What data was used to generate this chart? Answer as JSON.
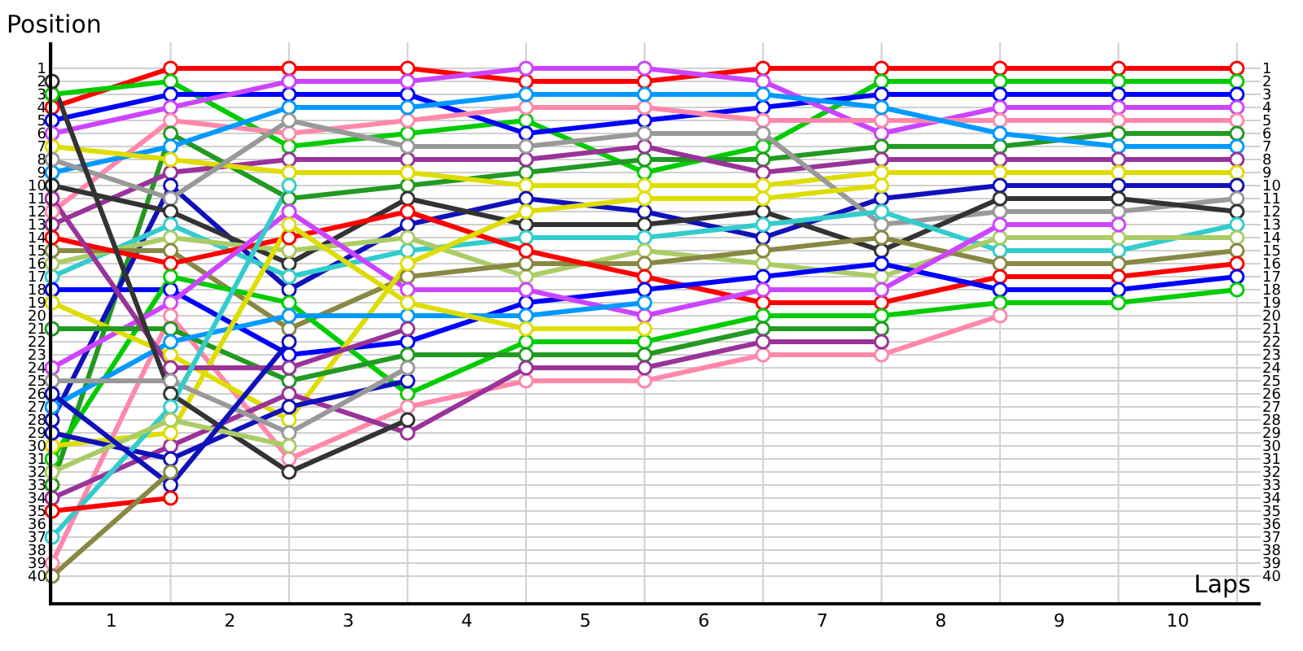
{
  "chart_data": {
    "type": "line",
    "xlabel": "Laps",
    "ylabel": "Position",
    "grid": true,
    "marker": "circle",
    "line_style": "solid",
    "x": [
      0,
      1,
      2,
      3,
      4,
      5,
      6,
      7,
      8,
      9,
      10
    ],
    "xlim": [
      0,
      10.2
    ],
    "xticks": [
      {
        "value": 0,
        "label": null
      },
      {
        "value": 0.5,
        "label": "1"
      },
      {
        "value": 1,
        "label": null
      },
      {
        "value": 1.5,
        "label": "2"
      },
      {
        "value": 2,
        "label": null
      },
      {
        "value": 2.5,
        "label": "3"
      },
      {
        "value": 3,
        "label": null
      },
      {
        "value": 3.5,
        "label": "4"
      },
      {
        "value": 4,
        "label": null
      },
      {
        "value": 4.5,
        "label": "5"
      },
      {
        "value": 5,
        "label": null
      },
      {
        "value": 5.5,
        "label": "6"
      },
      {
        "value": 6,
        "label": null
      },
      {
        "value": 6.5,
        "label": "7"
      },
      {
        "value": 7,
        "label": null
      },
      {
        "value": 7.5,
        "label": "8"
      },
      {
        "value": 8,
        "label": null
      },
      {
        "value": 8.5,
        "label": "9"
      },
      {
        "value": 9,
        "label": null
      },
      {
        "value": 9.5,
        "label": "10"
      },
      {
        "value": 10,
        "label": null
      }
    ],
    "ylim": [
      42,
      -1
    ],
    "yticks": [
      1,
      2,
      3,
      4,
      5,
      6,
      7,
      8,
      9,
      10,
      11,
      12,
      13,
      14,
      15,
      16,
      17,
      18,
      19,
      20,
      21,
      22,
      23,
      24,
      25,
      26,
      27,
      28,
      29,
      30,
      31,
      32,
      33,
      34,
      35,
      36,
      37,
      38,
      39,
      40
    ],
    "y2lim": [
      42,
      -1
    ],
    "y2ticks": [
      1,
      2,
      3,
      4,
      5,
      6,
      7,
      8,
      9,
      10,
      11,
      12,
      13,
      14,
      15,
      16,
      17,
      18,
      19,
      20,
      21,
      22,
      23,
      24,
      25,
      26,
      27,
      28,
      29,
      30,
      31,
      32,
      33,
      34,
      35,
      36,
      37,
      38,
      39,
      40
    ],
    "series": [
      {
        "color": "#ff0000",
        "values": [
          4,
          1,
          1,
          1,
          2,
          2,
          1,
          1,
          1,
          1,
          1
        ]
      },
      {
        "color": "#00cc00",
        "values": [
          3,
          2,
          7,
          6,
          5,
          9,
          7,
          2,
          2,
          2,
          2
        ]
      },
      {
        "color": "#0000ff",
        "values": [
          5,
          3,
          3,
          3,
          6,
          5,
          4,
          3,
          3,
          3,
          3
        ]
      },
      {
        "color": "#cc44ff",
        "values": [
          6,
          4,
          2,
          2,
          1,
          1,
          2,
          6,
          4,
          4,
          4
        ]
      },
      {
        "color": "#ff88aa",
        "values": [
          12,
          5,
          6,
          5,
          4,
          4,
          5,
          5,
          5,
          5,
          5
        ]
      },
      {
        "color": "#229922",
        "values": [
          33,
          6,
          11,
          10,
          9,
          8,
          8,
          7,
          7,
          6,
          6
        ]
      },
      {
        "color": "#0099ff",
        "values": [
          9,
          7,
          4,
          4,
          3,
          3,
          3,
          4,
          6,
          7,
          7
        ]
      },
      {
        "color": "#993399",
        "values": [
          13,
          9,
          8,
          8,
          8,
          7,
          9,
          8,
          8,
          8,
          8
        ]
      },
      {
        "color": "#dddd00",
        "values": [
          7,
          8,
          9,
          9,
          10,
          10,
          10,
          9,
          9,
          9,
          9
        ]
      },
      {
        "color": "#1111bb",
        "values": [
          28,
          10,
          18,
          13,
          11,
          12,
          14,
          11,
          10,
          10,
          10
        ]
      },
      {
        "color": "#999999",
        "values": [
          8,
          11,
          5,
          7,
          7,
          6,
          6,
          13,
          12,
          12,
          11
        ]
      },
      {
        "color": "#333333",
        "values": [
          10,
          12,
          16,
          11,
          13,
          13,
          12,
          15,
          11,
          11,
          12
        ]
      },
      {
        "color": "#33cccc",
        "values": [
          17,
          13,
          17,
          15,
          14,
          14,
          13,
          12,
          15,
          15,
          13
        ]
      },
      {
        "color": "#aacc66",
        "values": [
          16,
          14,
          15,
          14,
          17,
          15,
          16,
          17,
          14,
          14,
          14
        ]
      },
      {
        "color": "#888844",
        "values": [
          15,
          15,
          21,
          17,
          16,
          16,
          15,
          14,
          16,
          16,
          15
        ]
      },
      {
        "color": "#ff0000",
        "values": [
          14,
          16,
          14,
          12,
          15,
          17,
          19,
          19,
          17,
          17,
          16
        ]
      },
      {
        "color": "#0000ff",
        "values": [
          18,
          18,
          23,
          22,
          19,
          18,
          17,
          16,
          18,
          18,
          17
        ]
      },
      {
        "color": "#00cc00",
        "values": [
          31,
          17,
          19,
          26,
          22,
          22,
          20,
          20,
          19,
          19,
          18
        ]
      },
      {
        "color": "#cc44ff",
        "values": [
          24,
          19,
          12,
          18,
          18,
          20,
          18,
          18,
          13,
          13,
          null
        ]
      },
      {
        "color": "#ff88aa",
        "values": [
          39,
          20,
          31,
          27,
          25,
          25,
          23,
          23,
          20,
          null,
          null
        ]
      },
      {
        "color": "#dddd00",
        "values": [
          19,
          23,
          28,
          16,
          12,
          11,
          11,
          10,
          null,
          null,
          null
        ]
      },
      {
        "color": "#229922",
        "values": [
          21,
          21,
          25,
          23,
          23,
          23,
          21,
          21,
          null,
          null,
          null
        ]
      },
      {
        "color": "#993399",
        "values": [
          34,
          30,
          26,
          29,
          24,
          24,
          22,
          22,
          null,
          null,
          null
        ]
      },
      {
        "color": "#0099ff",
        "values": [
          27,
          22,
          20,
          20,
          20,
          19,
          null,
          null,
          null,
          null,
          null
        ]
      },
      {
        "color": "#dddd00",
        "values": [
          30,
          29,
          13,
          19,
          21,
          21,
          null,
          null,
          null,
          null,
          null
        ]
      },
      {
        "color": "#993399",
        "values": [
          11,
          24,
          24,
          21,
          null,
          null,
          null,
          null,
          null,
          null,
          null
        ]
      },
      {
        "color": "#1111bb",
        "values": [
          29,
          31,
          27,
          25,
          null,
          null,
          null,
          null,
          null,
          null,
          null
        ]
      },
      {
        "color": "#999999",
        "values": [
          25,
          25,
          29,
          24,
          null,
          null,
          null,
          null,
          null,
          null,
          null
        ]
      },
      {
        "color": "#333333",
        "values": [
          2,
          26,
          32,
          28,
          null,
          null,
          null,
          null,
          null,
          null,
          null
        ]
      },
      {
        "color": "#33cccc",
        "values": [
          37,
          27,
          10,
          null,
          null,
          null,
          null,
          null,
          null,
          null,
          null
        ]
      },
      {
        "color": "#aacc66",
        "values": [
          32,
          28,
          30,
          null,
          null,
          null,
          null,
          null,
          null,
          null,
          null
        ]
      },
      {
        "color": "#1111bb",
        "values": [
          26,
          33,
          22,
          null,
          null,
          null,
          null,
          null,
          null,
          null,
          null
        ]
      },
      {
        "color": "#ff0000",
        "values": [
          35,
          34,
          null,
          null,
          null,
          null,
          null,
          null,
          null,
          null,
          null
        ]
      },
      {
        "color": "#888844",
        "values": [
          40,
          32,
          null,
          null,
          null,
          null,
          null,
          null,
          null,
          null,
          null
        ]
      }
    ]
  }
}
